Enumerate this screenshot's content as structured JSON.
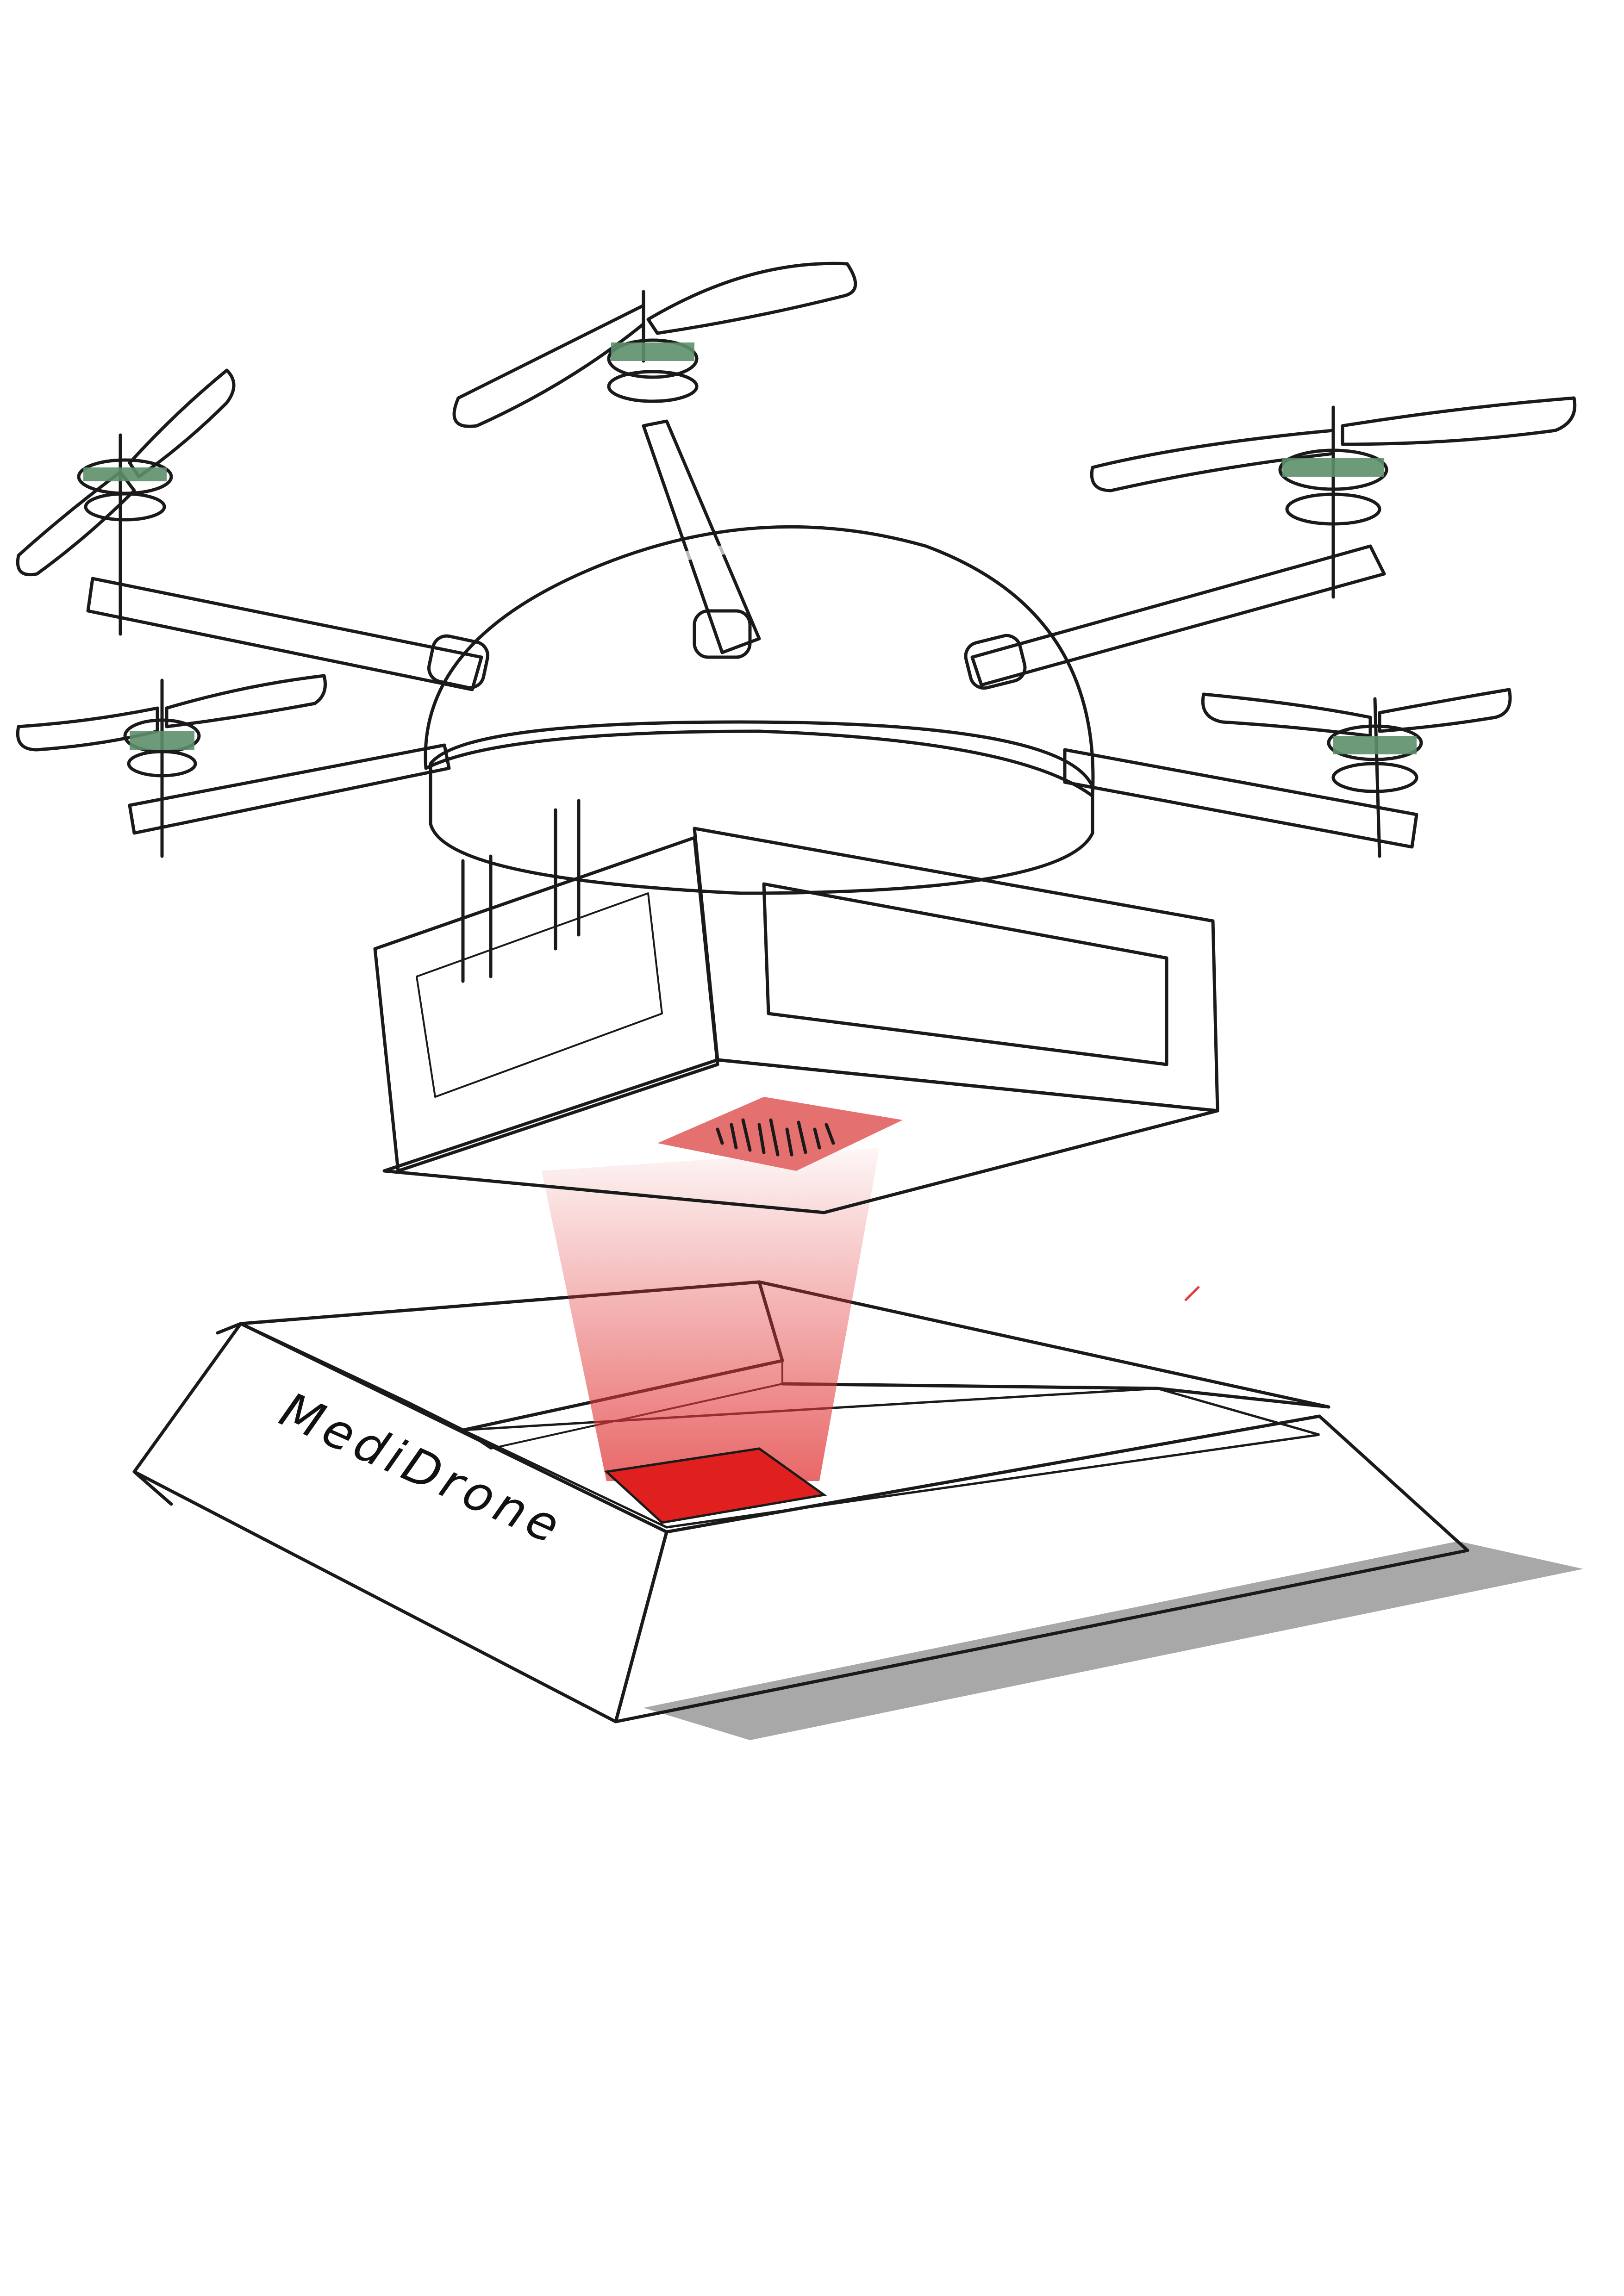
{
  "box": {
    "brand_label": "MediDrone"
  },
  "colors": {
    "canopy": "#e6de00",
    "canopy_highlight": "#f5ee3a",
    "skirt": "#3a3a3a",
    "arm": "#9c9c9c",
    "payload_body": "#a9a9a9",
    "payload_window": "#6e6e6e",
    "payload_underside": "#4a4a4a",
    "motor_band": "#5d8f6a",
    "scanner_beam": "#e23a3a",
    "target_pad": "#e01f1f",
    "box_flap": "#aca96c",
    "box_shadow": "#a8a8a8",
    "box_white": "#ffffff"
  },
  "icons": {
    "barcode": "barcode-icon",
    "drone": "drone-icon",
    "propeller": "propeller-icon",
    "package": "package-icon"
  }
}
